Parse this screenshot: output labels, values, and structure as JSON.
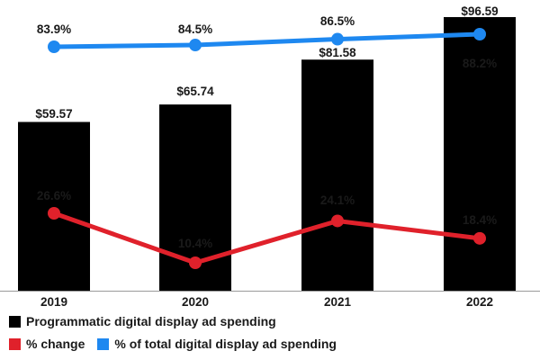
{
  "chart_data": {
    "type": "bar",
    "categories": [
      "2019",
      "2020",
      "2021",
      "2022"
    ],
    "series": [
      {
        "name": "Programmatic digital display ad spending",
        "kind": "bar",
        "values": [
          59.57,
          65.74,
          81.58,
          96.59
        ],
        "labels": [
          "$59.57",
          "$65.74",
          "$81.58",
          "$96.59"
        ],
        "color": "#000000"
      },
      {
        "name": "% change",
        "kind": "line",
        "values": [
          26.6,
          10.4,
          24.1,
          18.4
        ],
        "labels": [
          "26.6%",
          "10.4%",
          "24.1%",
          "18.4%"
        ],
        "color": "#e0212b"
      },
      {
        "name": "% of total digital display ad spending",
        "kind": "line",
        "values": [
          83.9,
          84.5,
          86.5,
          88.2
        ],
        "labels": [
          "83.9%",
          "84.5%",
          "86.5%",
          "88.2%"
        ],
        "color": "#1e88f0"
      }
    ],
    "title": "",
    "xlabel": "",
    "ylabel": "",
    "legend_position": "bottom-left"
  },
  "legend": {
    "row1": [
      {
        "label": "Programmatic digital display ad spending",
        "color": "#000000"
      }
    ],
    "row2": [
      {
        "label": "% change",
        "color": "#e0212b"
      },
      {
        "label": "% of total digital display ad spending",
        "color": "#1e88f0"
      }
    ]
  }
}
